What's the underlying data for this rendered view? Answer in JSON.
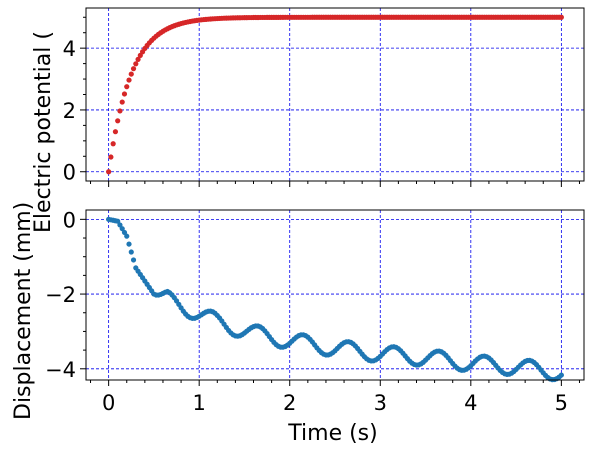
{
  "chart_data": [
    {
      "type": "scatter",
      "xlabel": "",
      "ylabel": "Electric potential (",
      "xlim": [
        -0.25,
        5.25
      ],
      "ylim": [
        -0.3,
        5.3
      ],
      "xticks": [
        0,
        1,
        2,
        3,
        4,
        5
      ],
      "yticks": [
        0,
        2,
        4
      ],
      "ytick_labels": [
        "0",
        "2",
        "4"
      ],
      "grid": true,
      "color": "#d62728",
      "series": [
        {
          "model": "first_order_rise",
          "final": 5,
          "time_constant": 0.25,
          "t_start": 0,
          "t_end": 5,
          "n_points": 201
        }
      ]
    },
    {
      "type": "scatter",
      "xlabel": "Time (s)",
      "ylabel": "Displacement (mm)",
      "xlim": [
        -0.25,
        5.25
      ],
      "ylim": [
        -4.3,
        0.25
      ],
      "xticks": [
        0,
        1,
        2,
        3,
        4,
        5
      ],
      "xtick_labels": [
        "0",
        "1",
        "2",
        "3",
        "4",
        "5"
      ],
      "yticks": [
        0,
        -2,
        -4
      ],
      "ytick_labels": [
        "0",
        "−2",
        "−4"
      ],
      "grid": true,
      "color": "#1f77b4",
      "series": [
        {
          "t_start": 0,
          "t_end": 5,
          "n_points": 201,
          "trend": {
            "t": [
              0,
              0.1,
              0.2,
              0.3,
              0.5,
              0.8,
              1.2,
              1.6,
              2.0,
              2.5,
              3.0,
              3.5,
              4.0,
              4.5,
              5.0
            ],
            "y": [
              0,
              -0.05,
              -0.45,
              -1.3,
              -2.0,
              -2.3,
              -2.75,
              -3.05,
              -3.25,
              -3.45,
              -3.6,
              -3.7,
              -3.85,
              -3.95,
              -4.1
            ]
          },
          "oscillation": {
            "amplitude": 0.22,
            "period": 0.5,
            "phase_peak": 0.65,
            "start": 0.5
          }
        }
      ]
    }
  ]
}
